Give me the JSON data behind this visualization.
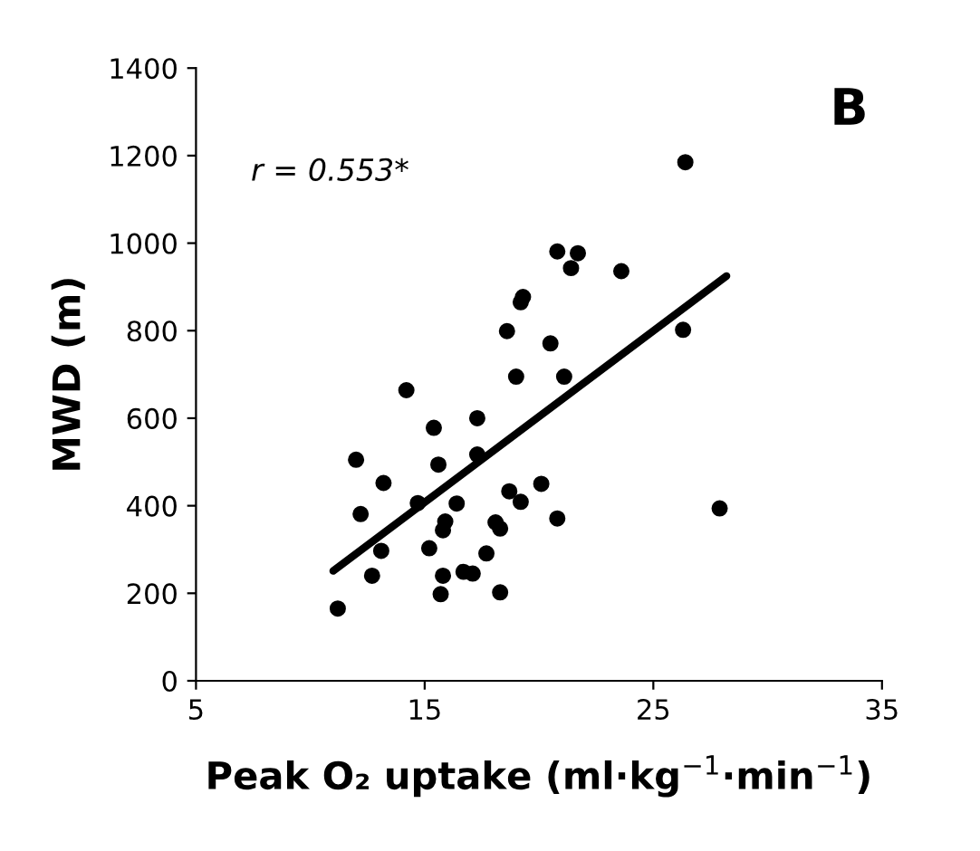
{
  "chart_data": {
    "type": "scatter",
    "title": "B",
    "xlabel": "Peak O₂ uptake (ml·kg$^{−1}$·min$^{−1}$)",
    "ylabel": "MWD (m)",
    "annotations": [
      "r = 0.553*"
    ],
    "series": [
      {
        "color": "#000000",
        "marker": "circle",
        "x": [
          11.2,
          12.0,
          12.2,
          12.7,
          13.1,
          13.2,
          14.2,
          14.7,
          15.2,
          15.4,
          15.6,
          15.8,
          15.7,
          15.9,
          15.8,
          16.4,
          16.7,
          17.1,
          17.3,
          17.3,
          17.7,
          18.1,
          18.3,
          18.3,
          18.6,
          18.7,
          19.0,
          19.2,
          19.3,
          19.2,
          20.1,
          20.5,
          20.8,
          20.8,
          21.4,
          21.1,
          21.7,
          23.6,
          26.3,
          27.9,
          26.4
        ],
        "values": [
          165,
          505,
          381,
          240,
          297,
          452,
          664,
          406,
          303,
          578,
          494,
          240,
          198,
          364,
          344,
          405,
          249,
          245,
          600,
          517,
          291,
          362,
          348,
          202,
          799,
          433,
          695,
          865,
          877,
          409,
          450,
          771,
          371,
          981,
          943,
          695,
          977,
          936,
          802,
          394,
          1185
        ]
      },
      {
        "type": "line",
        "color": "#000000",
        "marker": "none",
        "x": [
          11.0,
          28.2
        ],
        "values": [
          251,
          925
        ]
      }
    ],
    "xlim": [
      5,
      35
    ],
    "xticks": [
      5,
      15,
      25,
      35
    ],
    "ylim": [
      0,
      1400
    ],
    "yticks": [
      0,
      200,
      400,
      600,
      800,
      1000,
      1200,
      1400
    ],
    "grid": false,
    "legend": false
  }
}
